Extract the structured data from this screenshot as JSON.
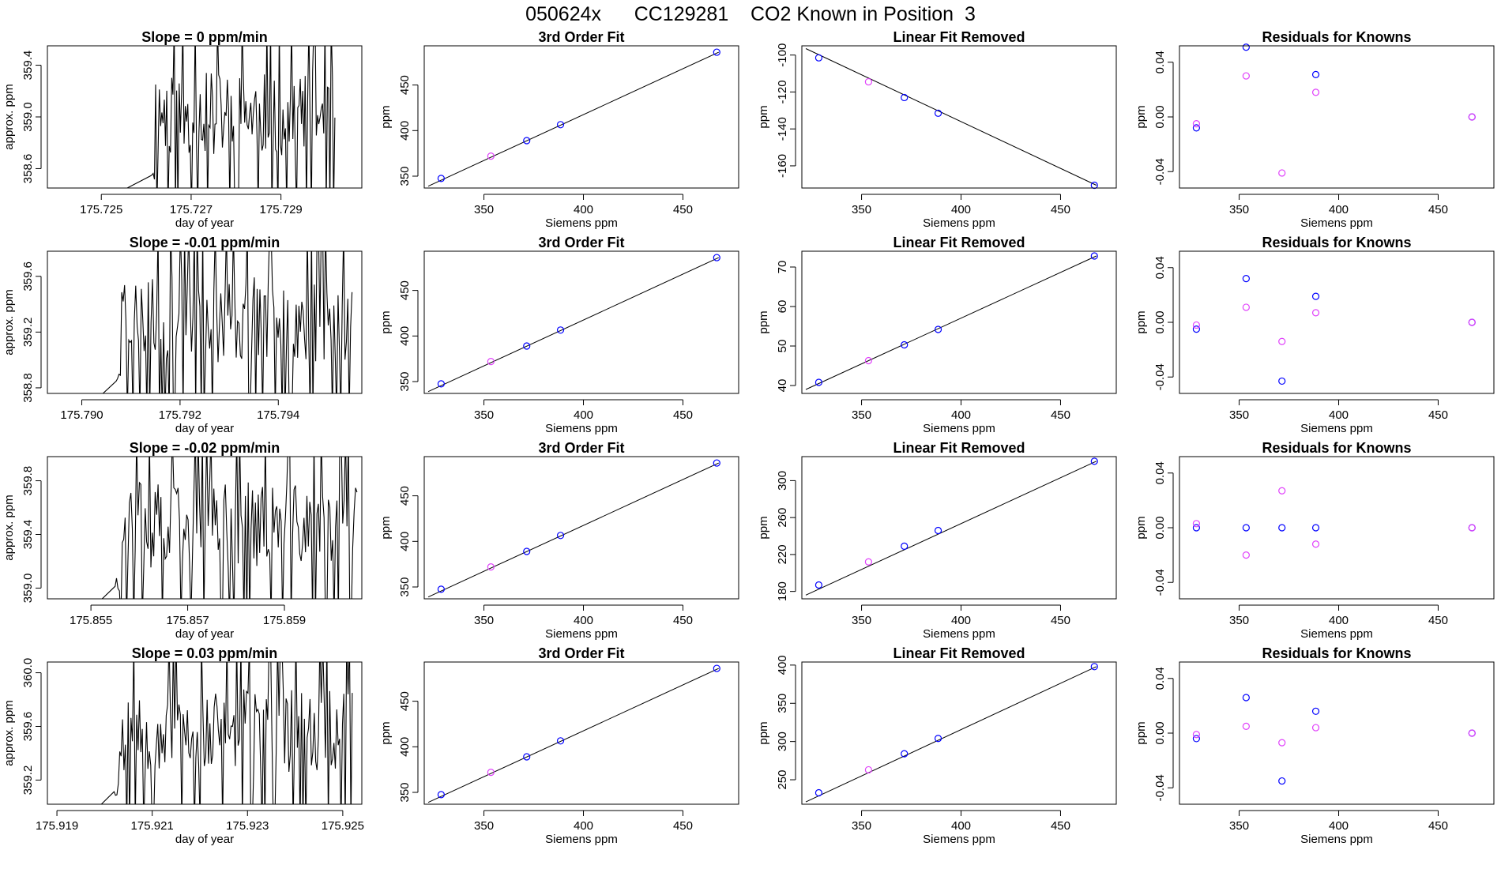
{
  "page_title": "050624x      CC129281    CO2 Known in Position  3",
  "colors": {
    "series_a": "#0000ff",
    "series_b": "#e040fb",
    "line": "#000000",
    "frame": "#000000"
  },
  "chart_data": [
    {
      "type": "line",
      "row": 0,
      "col": 0,
      "title": "Slope =  0  ppm/min",
      "xlabel": "day of year",
      "ylabel": "approx. ppm",
      "xlim": [
        175.7238,
        175.7308
      ],
      "ylim": [
        358.45,
        359.55
      ],
      "xticks": [
        175.725,
        175.727,
        175.729
      ],
      "xtick_labels": [
        "175.725",
        "175.727",
        "175.729"
      ],
      "yticks": [
        358.6,
        359.0,
        359.4
      ],
      "ytick_labels": [
        "358.6",
        "359.0",
        "359.4"
      ],
      "trace": {
        "x_start": 175.7261,
        "x_end": 175.7302,
        "points": 150,
        "low": 358.45,
        "high": 359.55,
        "seed": 11
      }
    },
    {
      "type": "scatter",
      "row": 0,
      "col": 1,
      "title": "3rd Order Fit",
      "xlabel": "Siemens ppm",
      "ylabel": "ppm",
      "xlim": [
        320,
        478
      ],
      "ylim": [
        337,
        493
      ],
      "xticks": [
        350,
        400,
        450
      ],
      "xtick_labels": [
        "350",
        "400",
        "450"
      ],
      "yticks": [
        350,
        400,
        450
      ],
      "ytick_labels": [
        "350",
        "400",
        "450"
      ],
      "fit_line": {
        "x": [
          322,
          468
        ],
        "y": [
          339,
          486
        ]
      },
      "series": [
        {
          "name": "knowns",
          "color": "#0000ff",
          "x": [
            328.5,
            371.5,
            388.5,
            467
          ],
          "y": [
            347.5,
            389,
            406.5,
            486
          ]
        },
        {
          "name": "fitted",
          "color": "#e040fb",
          "x": [
            353.5
          ],
          "y": [
            372
          ]
        }
      ]
    },
    {
      "type": "scatter",
      "row": 0,
      "col": 2,
      "title": "Linear Fit Removed",
      "xlabel": "Siemens ppm",
      "ylabel": "ppm",
      "xlim": [
        320,
        478
      ],
      "ylim": [
        -172,
        -95
      ],
      "xticks": [
        350,
        400,
        450
      ],
      "xtick_labels": [
        "350",
        "400",
        "450"
      ],
      "yticks": [
        -160,
        -140,
        -120,
        -100
      ],
      "ytick_labels": [
        "-160",
        "-140",
        "-120",
        "-100"
      ],
      "fit_line": {
        "x": [
          322,
          468
        ],
        "y": [
          -96.5,
          -170.5
        ]
      },
      "series": [
        {
          "name": "knowns",
          "color": "#0000ff",
          "x": [
            328.5,
            371.5,
            388.5,
            467
          ],
          "y": [
            -101.5,
            -123,
            -131.5,
            -170.5
          ]
        },
        {
          "name": "fitted",
          "color": "#e040fb",
          "x": [
            353.5
          ],
          "y": [
            -114.5
          ]
        }
      ]
    },
    {
      "type": "scatter",
      "row": 0,
      "col": 3,
      "title": "Residuals for Knowns",
      "xlabel": "Siemens ppm",
      "ylabel": "ppm",
      "xlim": [
        320,
        478
      ],
      "ylim": [
        -0.052,
        0.052
      ],
      "xticks": [
        350,
        400,
        450
      ],
      "xtick_labels": [
        "350",
        "400",
        "450"
      ],
      "yticks": [
        -0.04,
        0.0,
        0.04
      ],
      "ytick_labels": [
        "-0.04",
        "0.00",
        "0.04"
      ],
      "series": [
        {
          "name": "knowns",
          "color": "#0000ff",
          "x": [
            328.5,
            353.5,
            388.5,
            467
          ],
          "y": [
            -0.008,
            0.051,
            0.031,
            0.0
          ]
        },
        {
          "name": "fitted",
          "color": "#e040fb",
          "x": [
            328.5,
            353.5,
            371.5,
            388.5,
            467
          ],
          "y": [
            -0.005,
            0.03,
            -0.041,
            0.018,
            0.0
          ]
        }
      ]
    },
    {
      "type": "line",
      "row": 1,
      "col": 0,
      "title": "Slope =  -0.01  ppm/min",
      "xlabel": "day of year",
      "ylabel": "approx. ppm",
      "xlim": [
        175.7893,
        175.7957
      ],
      "ylim": [
        358.76,
        359.78
      ],
      "xticks": [
        175.79,
        175.792,
        175.794
      ],
      "xtick_labels": [
        "175.790",
        "175.792",
        "175.794"
      ],
      "yticks": [
        358.8,
        359.2,
        359.6
      ],
      "ytick_labels": [
        "358.8",
        "359.2",
        "359.6"
      ],
      "trace": {
        "x_start": 175.7907,
        "x_end": 175.7955,
        "points": 170,
        "low": 358.76,
        "high": 359.78,
        "seed": 23
      }
    },
    {
      "type": "scatter",
      "row": 1,
      "col": 1,
      "title": "3rd Order Fit",
      "xlabel": "Siemens ppm",
      "ylabel": "ppm",
      "xlim": [
        320,
        478
      ],
      "ylim": [
        337,
        493
      ],
      "xticks": [
        350,
        400,
        450
      ],
      "xtick_labels": [
        "350",
        "400",
        "450"
      ],
      "yticks": [
        350,
        400,
        450
      ],
      "ytick_labels": [
        "350",
        "400",
        "450"
      ],
      "fit_line": {
        "x": [
          322,
          468
        ],
        "y": [
          339,
          486
        ]
      },
      "series": [
        {
          "name": "knowns",
          "color": "#0000ff",
          "x": [
            328.5,
            371.5,
            388.5,
            467
          ],
          "y": [
            347.5,
            389,
            406.5,
            486
          ]
        },
        {
          "name": "fitted",
          "color": "#e040fb",
          "x": [
            353.5
          ],
          "y": [
            372
          ]
        }
      ]
    },
    {
      "type": "scatter",
      "row": 1,
      "col": 2,
      "title": "Linear Fit Removed",
      "xlabel": "Siemens ppm",
      "ylabel": "ppm",
      "xlim": [
        320,
        478
      ],
      "ylim": [
        38,
        74
      ],
      "xticks": [
        350,
        400,
        450
      ],
      "xtick_labels": [
        "350",
        "400",
        "450"
      ],
      "yticks": [
        40,
        50,
        60,
        70
      ],
      "ytick_labels": [
        "40",
        "50",
        "60",
        "70"
      ],
      "fit_line": {
        "x": [
          322,
          468
        ],
        "y": [
          39,
          72.8
        ]
      },
      "series": [
        {
          "name": "knowns",
          "color": "#0000ff",
          "x": [
            328.5,
            371.5,
            388.5,
            467
          ],
          "y": [
            40.8,
            50.3,
            54.2,
            72.8
          ]
        },
        {
          "name": "fitted",
          "color": "#e040fb",
          "x": [
            353.5
          ],
          "y": [
            46.3
          ]
        }
      ]
    },
    {
      "type": "scatter",
      "row": 1,
      "col": 3,
      "title": "Residuals for Knowns",
      "xlabel": "Siemens ppm",
      "ylabel": "ppm",
      "xlim": [
        320,
        478
      ],
      "ylim": [
        -0.052,
        0.052
      ],
      "xticks": [
        350,
        400,
        450
      ],
      "xtick_labels": [
        "350",
        "400",
        "450"
      ],
      "yticks": [
        -0.04,
        0.0,
        0.04
      ],
      "ytick_labels": [
        "-0.04",
        "0.00",
        "0.04"
      ],
      "series": [
        {
          "name": "knowns",
          "color": "#0000ff",
          "x": [
            328.5,
            353.5,
            371.5,
            388.5,
            467
          ],
          "y": [
            -0.005,
            0.032,
            -0.043,
            0.019,
            0.0
          ]
        },
        {
          "name": "fitted",
          "color": "#e040fb",
          "x": [
            328.5,
            353.5,
            371.5,
            388.5,
            467
          ],
          "y": [
            -0.002,
            0.011,
            -0.014,
            0.007,
            0.0
          ]
        }
      ]
    },
    {
      "type": "line",
      "row": 2,
      "col": 0,
      "title": "Slope =  -0.02  ppm/min",
      "xlabel": "day of year",
      "ylabel": "approx. ppm",
      "xlim": [
        175.8541,
        175.8606
      ],
      "ylim": [
        358.92,
        359.98
      ],
      "xticks": [
        175.855,
        175.857,
        175.859
      ],
      "xtick_labels": [
        "175.855",
        "175.857",
        "175.859"
      ],
      "yticks": [
        359.0,
        359.4,
        359.8
      ],
      "ytick_labels": [
        "359.0",
        "359.4",
        "359.8"
      ],
      "trace": {
        "x_start": 175.8555,
        "x_end": 175.8605,
        "points": 170,
        "low": 358.92,
        "high": 359.98,
        "seed": 37
      }
    },
    {
      "type": "scatter",
      "row": 2,
      "col": 1,
      "title": "3rd Order Fit",
      "xlabel": "Siemens ppm",
      "ylabel": "ppm",
      "xlim": [
        320,
        478
      ],
      "ylim": [
        337,
        493
      ],
      "xticks": [
        350,
        400,
        450
      ],
      "xtick_labels": [
        "350",
        "400",
        "450"
      ],
      "yticks": [
        350,
        400,
        450
      ],
      "ytick_labels": [
        "350",
        "400",
        "450"
      ],
      "fit_line": {
        "x": [
          322,
          468
        ],
        "y": [
          339,
          486
        ]
      },
      "series": [
        {
          "name": "knowns",
          "color": "#0000ff",
          "x": [
            328.5,
            371.5,
            388.5,
            467
          ],
          "y": [
            347.5,
            389,
            406.5,
            486
          ]
        },
        {
          "name": "fitted",
          "color": "#e040fb",
          "x": [
            353.5
          ],
          "y": [
            372
          ]
        }
      ]
    },
    {
      "type": "scatter",
      "row": 2,
      "col": 2,
      "title": "Linear Fit Removed",
      "xlabel": "Siemens ppm",
      "ylabel": "ppm",
      "xlim": [
        320,
        478
      ],
      "ylim": [
        172,
        326
      ],
      "xticks": [
        350,
        400,
        450
      ],
      "xtick_labels": [
        "350",
        "400",
        "450"
      ],
      "yticks": [
        180,
        220,
        260,
        300
      ],
      "ytick_labels": [
        "180",
        "220",
        "260",
        "300"
      ],
      "fit_line": {
        "x": [
          322,
          468
        ],
        "y": [
          176,
          321
        ]
      },
      "series": [
        {
          "name": "knowns",
          "color": "#0000ff",
          "x": [
            328.5,
            371.5,
            388.5,
            467
          ],
          "y": [
            187,
            229,
            246,
            321
          ]
        },
        {
          "name": "fitted",
          "color": "#e040fb",
          "x": [
            353.5
          ],
          "y": [
            212
          ]
        }
      ]
    },
    {
      "type": "scatter",
      "row": 2,
      "col": 3,
      "title": "Residuals for Knowns",
      "xlabel": "Siemens ppm",
      "ylabel": "ppm",
      "xlim": [
        320,
        478
      ],
      "ylim": [
        -0.052,
        0.052
      ],
      "xticks": [
        350,
        400,
        450
      ],
      "xtick_labels": [
        "350",
        "400",
        "450"
      ],
      "yticks": [
        -0.04,
        0.0,
        0.04
      ],
      "ytick_labels": [
        "-0.04",
        "0.00",
        "0.04"
      ],
      "series": [
        {
          "name": "knowns",
          "color": "#0000ff",
          "x": [
            328.5,
            353.5,
            371.5,
            388.5,
            467
          ],
          "y": [
            0.0,
            0.0,
            0.0,
            0.0,
            0.0
          ]
        },
        {
          "name": "fitted",
          "color": "#e040fb",
          "x": [
            328.5,
            353.5,
            371.5,
            388.5,
            467
          ],
          "y": [
            0.003,
            -0.02,
            0.027,
            -0.012,
            0.0
          ]
        }
      ]
    },
    {
      "type": "line",
      "row": 3,
      "col": 0,
      "title": "Slope =  0.03  ppm/min",
      "xlabel": "day of year",
      "ylabel": "approx. ppm",
      "xlim": [
        175.9188,
        175.9254
      ],
      "ylim": [
        359.02,
        360.08
      ],
      "xticks": [
        175.919,
        175.921,
        175.923,
        175.925
      ],
      "xtick_labels": [
        "175.919",
        "175.921",
        "175.923",
        "175.925"
      ],
      "yticks": [
        359.2,
        359.6,
        360.0
      ],
      "ytick_labels": [
        "359.2",
        "359.6",
        "360.0"
      ],
      "trace": {
        "x_start": 175.9202,
        "x_end": 175.9252,
        "points": 170,
        "low": 359.02,
        "high": 360.08,
        "seed": 53
      }
    },
    {
      "type": "scatter",
      "row": 3,
      "col": 1,
      "title": "3rd Order Fit",
      "xlabel": "Siemens ppm",
      "ylabel": "ppm",
      "xlim": [
        320,
        478
      ],
      "ylim": [
        337,
        493
      ],
      "xticks": [
        350,
        400,
        450
      ],
      "xtick_labels": [
        "350",
        "400",
        "450"
      ],
      "yticks": [
        350,
        400,
        450
      ],
      "ytick_labels": [
        "350",
        "400",
        "450"
      ],
      "fit_line": {
        "x": [
          322,
          468
        ],
        "y": [
          339,
          486
        ]
      },
      "series": [
        {
          "name": "knowns",
          "color": "#0000ff",
          "x": [
            328.5,
            371.5,
            388.5,
            467
          ],
          "y": [
            347.5,
            389,
            406.5,
            486
          ]
        },
        {
          "name": "fitted",
          "color": "#e040fb",
          "x": [
            353.5
          ],
          "y": [
            372
          ]
        }
      ]
    },
    {
      "type": "scatter",
      "row": 3,
      "col": 2,
      "title": "Linear Fit Removed",
      "xlabel": "Siemens ppm",
      "ylabel": "ppm",
      "xlim": [
        320,
        478
      ],
      "ylim": [
        218,
        404
      ],
      "xticks": [
        350,
        400,
        450
      ],
      "xtick_labels": [
        "350",
        "400",
        "450"
      ],
      "yticks": [
        250,
        300,
        350,
        400
      ],
      "ytick_labels": [
        "250",
        "300",
        "350",
        "400"
      ],
      "fit_line": {
        "x": [
          322,
          468
        ],
        "y": [
          221,
          398
        ]
      },
      "series": [
        {
          "name": "knowns",
          "color": "#0000ff",
          "x": [
            328.5,
            371.5,
            388.5,
            467
          ],
          "y": [
            233,
            284,
            304,
            398
          ]
        },
        {
          "name": "fitted",
          "color": "#e040fb",
          "x": [
            353.5
          ],
          "y": [
            263
          ]
        }
      ]
    },
    {
      "type": "scatter",
      "row": 3,
      "col": 3,
      "title": "Residuals for Knowns",
      "xlabel": "Siemens ppm",
      "ylabel": "ppm",
      "xlim": [
        320,
        478
      ],
      "ylim": [
        -0.052,
        0.052
      ],
      "xticks": [
        350,
        400,
        450
      ],
      "xtick_labels": [
        "350",
        "400",
        "450"
      ],
      "yticks": [
        -0.04,
        0.0,
        0.04
      ],
      "ytick_labels": [
        "-0.04",
        "0.00",
        "0.04"
      ],
      "series": [
        {
          "name": "knowns",
          "color": "#0000ff",
          "x": [
            328.5,
            353.5,
            371.5,
            388.5,
            467
          ],
          "y": [
            -0.004,
            0.026,
            -0.035,
            0.016,
            0.0
          ]
        },
        {
          "name": "fitted",
          "color": "#e040fb",
          "x": [
            328.5,
            353.5,
            371.5,
            388.5,
            467
          ],
          "y": [
            -0.001,
            0.005,
            -0.007,
            0.004,
            0.0
          ]
        }
      ]
    }
  ]
}
